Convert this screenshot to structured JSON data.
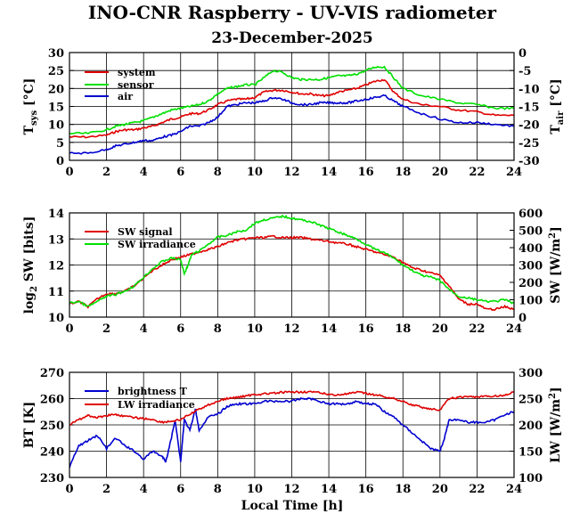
{
  "title": "INO-CNR Raspberry - UV-VIS radiometer",
  "date": "23-December-2025",
  "colors": {
    "red": "#e00000",
    "green": "#00e000",
    "blue": "#0000d0"
  },
  "chart_data": [
    {
      "type": "line",
      "xlabel": "",
      "xlim": [
        0,
        24
      ],
      "xticks": [
        "0",
        "2",
        "4",
        "6",
        "8",
        "10",
        "12",
        "14",
        "16",
        "18",
        "20",
        "22",
        "24"
      ],
      "left_axis": {
        "label": "T",
        "sub": "sys",
        "unit": " [°C]",
        "ylim": [
          0,
          30
        ],
        "ticks": [
          "0",
          "5",
          "10",
          "15",
          "20",
          "25",
          "30"
        ]
      },
      "right_axis": {
        "label": "T",
        "sub": "air",
        "unit": " [°C]",
        "ylim": [
          -30,
          0
        ],
        "ticks": [
          "-30",
          "-25",
          "-20",
          "-15",
          "-10",
          "-5",
          "0"
        ]
      },
      "legend": [
        "system",
        "sensor",
        "air"
      ],
      "series": [
        {
          "name": "system",
          "axis": "left",
          "color": "red",
          "x": [
            0,
            1,
            2,
            2.5,
            3,
            3.5,
            4,
            4.5,
            5,
            5.5,
            6,
            6.5,
            7,
            7.5,
            8,
            8.5,
            9,
            9.5,
            10,
            10.5,
            11,
            11.5,
            12,
            12.5,
            13,
            13.5,
            14,
            14.5,
            15,
            15.5,
            16,
            16.5,
            17,
            17.5,
            18,
            19,
            20,
            21,
            22,
            23,
            24
          ],
          "y": [
            6.5,
            6.5,
            7,
            8,
            8.5,
            8.5,
            9,
            9.5,
            10.5,
            11.5,
            12,
            13,
            13,
            14,
            15.5,
            16.5,
            17,
            17,
            17.5,
            19,
            19.5,
            19.5,
            19,
            18.5,
            18.5,
            18,
            18,
            19,
            19.5,
            20,
            21,
            22,
            22.5,
            19,
            17,
            15.5,
            15,
            14,
            13.5,
            12.5,
            12.5
          ]
        },
        {
          "name": "sensor",
          "axis": "left",
          "color": "green",
          "x": [
            0,
            1,
            2,
            2.5,
            3,
            3.5,
            4,
            4.5,
            5,
            5.5,
            6,
            6.5,
            7,
            7.5,
            8,
            8.5,
            9,
            9.5,
            10,
            10.5,
            11,
            11.5,
            12,
            12.5,
            13,
            13.5,
            14,
            14.5,
            15,
            15.5,
            16,
            16.5,
            17,
            17.5,
            18,
            19,
            20,
            21,
            22,
            23,
            24
          ],
          "y": [
            7.5,
            7.5,
            8.5,
            9.5,
            10,
            10.5,
            11,
            12,
            13,
            14,
            14.5,
            15,
            15.5,
            16.5,
            18.5,
            20,
            20.5,
            21,
            21,
            23,
            25,
            24.5,
            23,
            22.5,
            22.5,
            22.5,
            23,
            23.5,
            23.5,
            24,
            25,
            26,
            26,
            23,
            20,
            18,
            17,
            16,
            15.5,
            14.5,
            14.5
          ]
        },
        {
          "name": "air",
          "axis": "right",
          "color": "blue",
          "x": [
            0,
            1,
            2,
            2.5,
            3,
            3.5,
            4,
            4.5,
            5,
            5.5,
            6,
            6.5,
            7,
            7.5,
            8,
            8.5,
            9,
            9.5,
            10,
            10.5,
            11,
            11.5,
            12,
            12.5,
            13,
            13.5,
            14,
            14.5,
            15,
            15.5,
            16,
            16.5,
            17,
            17.5,
            18,
            19,
            20,
            21,
            22,
            23,
            24
          ],
          "y": [
            -28,
            -28,
            -27,
            -26,
            -25.5,
            -25,
            -24.5,
            -24.5,
            -23.5,
            -23,
            -22,
            -20.5,
            -20.5,
            -19.5,
            -18,
            -15,
            -14.5,
            -14,
            -14,
            -13.5,
            -12.5,
            -13,
            -14,
            -14.5,
            -14.5,
            -14,
            -14,
            -14,
            -14,
            -13.5,
            -13,
            -12.5,
            -12,
            -13.5,
            -15,
            -17,
            -18.5,
            -19.5,
            -19.5,
            -20,
            -20.5
          ]
        }
      ]
    },
    {
      "type": "line",
      "xlabel": "",
      "xlim": [
        0,
        24
      ],
      "xticks": [
        "0",
        "2",
        "4",
        "6",
        "8",
        "10",
        "12",
        "14",
        "16",
        "18",
        "20",
        "22",
        "24"
      ],
      "left_axis": {
        "label": "log",
        "sub": "2",
        "unit": " SW [bits]",
        "ylim": [
          10,
          14
        ],
        "ticks": [
          "10",
          "11",
          "12",
          "13",
          "14"
        ]
      },
      "right_axis": {
        "label": "SW [W/m",
        "sup": "2",
        "unit": "]",
        "ylim": [
          0,
          600
        ],
        "ticks": [
          "0",
          "100",
          "200",
          "300",
          "400",
          "500",
          "600"
        ]
      },
      "legend": [
        "SW signal",
        "SW irradiance"
      ],
      "series": [
        {
          "name": "SW signal",
          "axis": "left",
          "color": "red",
          "x": [
            0,
            0.5,
            1,
            1.5,
            2,
            2.5,
            3,
            3.5,
            4,
            4.5,
            5,
            5.5,
            6,
            6.5,
            7,
            7.5,
            8,
            8.5,
            9,
            9.5,
            10,
            10.5,
            11,
            11.5,
            12,
            12.5,
            13,
            13.5,
            14,
            14.5,
            15,
            15.5,
            16,
            16.5,
            17,
            17.5,
            18,
            18.5,
            19,
            19.5,
            20,
            20.5,
            21,
            21.5,
            22,
            22.5,
            23,
            23.5,
            24
          ],
          "y": [
            10.5,
            10.6,
            10.4,
            10.7,
            10.9,
            10.9,
            11,
            11.2,
            11.5,
            11.8,
            12,
            12.2,
            12.3,
            12.4,
            12.5,
            12.6,
            12.7,
            12.85,
            12.95,
            13,
            13.05,
            13.05,
            13.1,
            13.05,
            13.05,
            13.05,
            13,
            12.95,
            12.9,
            12.85,
            12.8,
            12.7,
            12.6,
            12.5,
            12.4,
            12.3,
            12.1,
            11.9,
            11.8,
            11.7,
            11.6,
            11.2,
            10.7,
            10.5,
            10.5,
            10.3,
            10.3,
            10.4,
            10.3
          ]
        },
        {
          "name": "SW irradiance",
          "axis": "right",
          "color": "green",
          "x": [
            0,
            0.5,
            1,
            1.5,
            2,
            2.5,
            3,
            3.5,
            4,
            4.5,
            5,
            5.5,
            6,
            6.2,
            6.4,
            6.6,
            7,
            7.5,
            8,
            8.5,
            9,
            9.5,
            10,
            10.5,
            11,
            11.5,
            12,
            12.5,
            13,
            13.5,
            14,
            14.5,
            15,
            15.5,
            16,
            16.5,
            17,
            17.5,
            18,
            18.5,
            19,
            19.5,
            20,
            20.5,
            21,
            21.5,
            22,
            22.5,
            23,
            23.5,
            24
          ],
          "y": [
            80,
            90,
            60,
            90,
            120,
            130,
            150,
            180,
            230,
            280,
            320,
            340,
            330,
            250,
            300,
            360,
            380,
            420,
            460,
            470,
            490,
            500,
            540,
            560,
            570,
            580,
            570,
            560,
            550,
            530,
            510,
            490,
            470,
            450,
            420,
            390,
            370,
            340,
            300,
            270,
            240,
            230,
            210,
            160,
            120,
            110,
            100,
            90,
            90,
            100,
            80
          ]
        }
      ]
    },
    {
      "type": "line",
      "xlabel": "Local Time [h]",
      "xlim": [
        0,
        24
      ],
      "xticks": [
        "0",
        "2",
        "4",
        "6",
        "8",
        "10",
        "12",
        "14",
        "16",
        "18",
        "20",
        "22",
        "24"
      ],
      "left_axis": {
        "label": "BT [K]",
        "ylim": [
          230,
          270
        ],
        "ticks": [
          "230",
          "240",
          "250",
          "260",
          "270"
        ]
      },
      "right_axis": {
        "label": "LW [W/m",
        "sup": "2",
        "unit": "]",
        "ylim": [
          100,
          300
        ],
        "ticks": [
          "100",
          "150",
          "200",
          "250",
          "300"
        ]
      },
      "legend": [
        "brightness T",
        "LW irradiance"
      ],
      "series": [
        {
          "name": "brightness T",
          "axis": "left",
          "color": "blue",
          "x": [
            0,
            0.5,
            1,
            1.5,
            2,
            2.5,
            3,
            3.5,
            4,
            4.5,
            5,
            5.2,
            5.5,
            5.7,
            6,
            6.2,
            6.5,
            6.8,
            7,
            7.5,
            8,
            8.5,
            9,
            9.5,
            10,
            10.5,
            11,
            11.5,
            12,
            12.5,
            13,
            13.5,
            14,
            14.5,
            15,
            15.5,
            16,
            16.5,
            17,
            17.5,
            18,
            18.5,
            19,
            19.5,
            20,
            20.2,
            20.5,
            21,
            21.5,
            22,
            22.5,
            23,
            23.5,
            24
          ],
          "y": [
            234,
            242,
            244,
            246,
            241,
            245,
            242,
            240,
            237,
            240,
            238,
            236,
            245,
            252,
            236,
            252,
            248,
            256,
            248,
            253,
            254,
            257,
            258,
            258,
            258,
            259,
            259,
            259,
            259,
            260,
            260,
            259,
            258,
            258,
            258,
            259,
            258,
            258,
            255,
            253,
            250,
            247,
            244,
            241,
            240,
            244,
            252,
            252,
            251,
            251,
            251,
            252,
            254,
            255
          ]
        },
        {
          "name": "LW irradiance",
          "axis": "right",
          "color": "red",
          "x": [
            0,
            0.5,
            1,
            1.5,
            2,
            2.5,
            3,
            3.5,
            4,
            4.5,
            5,
            5.5,
            6,
            6.5,
            7,
            7.5,
            8,
            8.5,
            9,
            9.5,
            10,
            10.5,
            11,
            11.5,
            12,
            12.5,
            13,
            13.5,
            14,
            14.5,
            15,
            15.5,
            16,
            16.5,
            17,
            17.5,
            18,
            18.5,
            19,
            19.5,
            20,
            20.5,
            21,
            21.5,
            22,
            22.5,
            23,
            23.5,
            24
          ],
          "y": [
            200,
            210,
            218,
            214,
            218,
            220,
            216,
            214,
            212,
            210,
            205,
            207,
            210,
            220,
            230,
            238,
            245,
            250,
            252,
            255,
            258,
            259,
            260,
            262,
            262,
            263,
            263,
            261,
            258,
            257,
            259,
            262,
            260,
            257,
            254,
            250,
            245,
            238,
            234,
            230,
            228,
            250,
            252,
            254,
            253,
            254,
            255,
            256,
            263
          ]
        }
      ]
    }
  ]
}
